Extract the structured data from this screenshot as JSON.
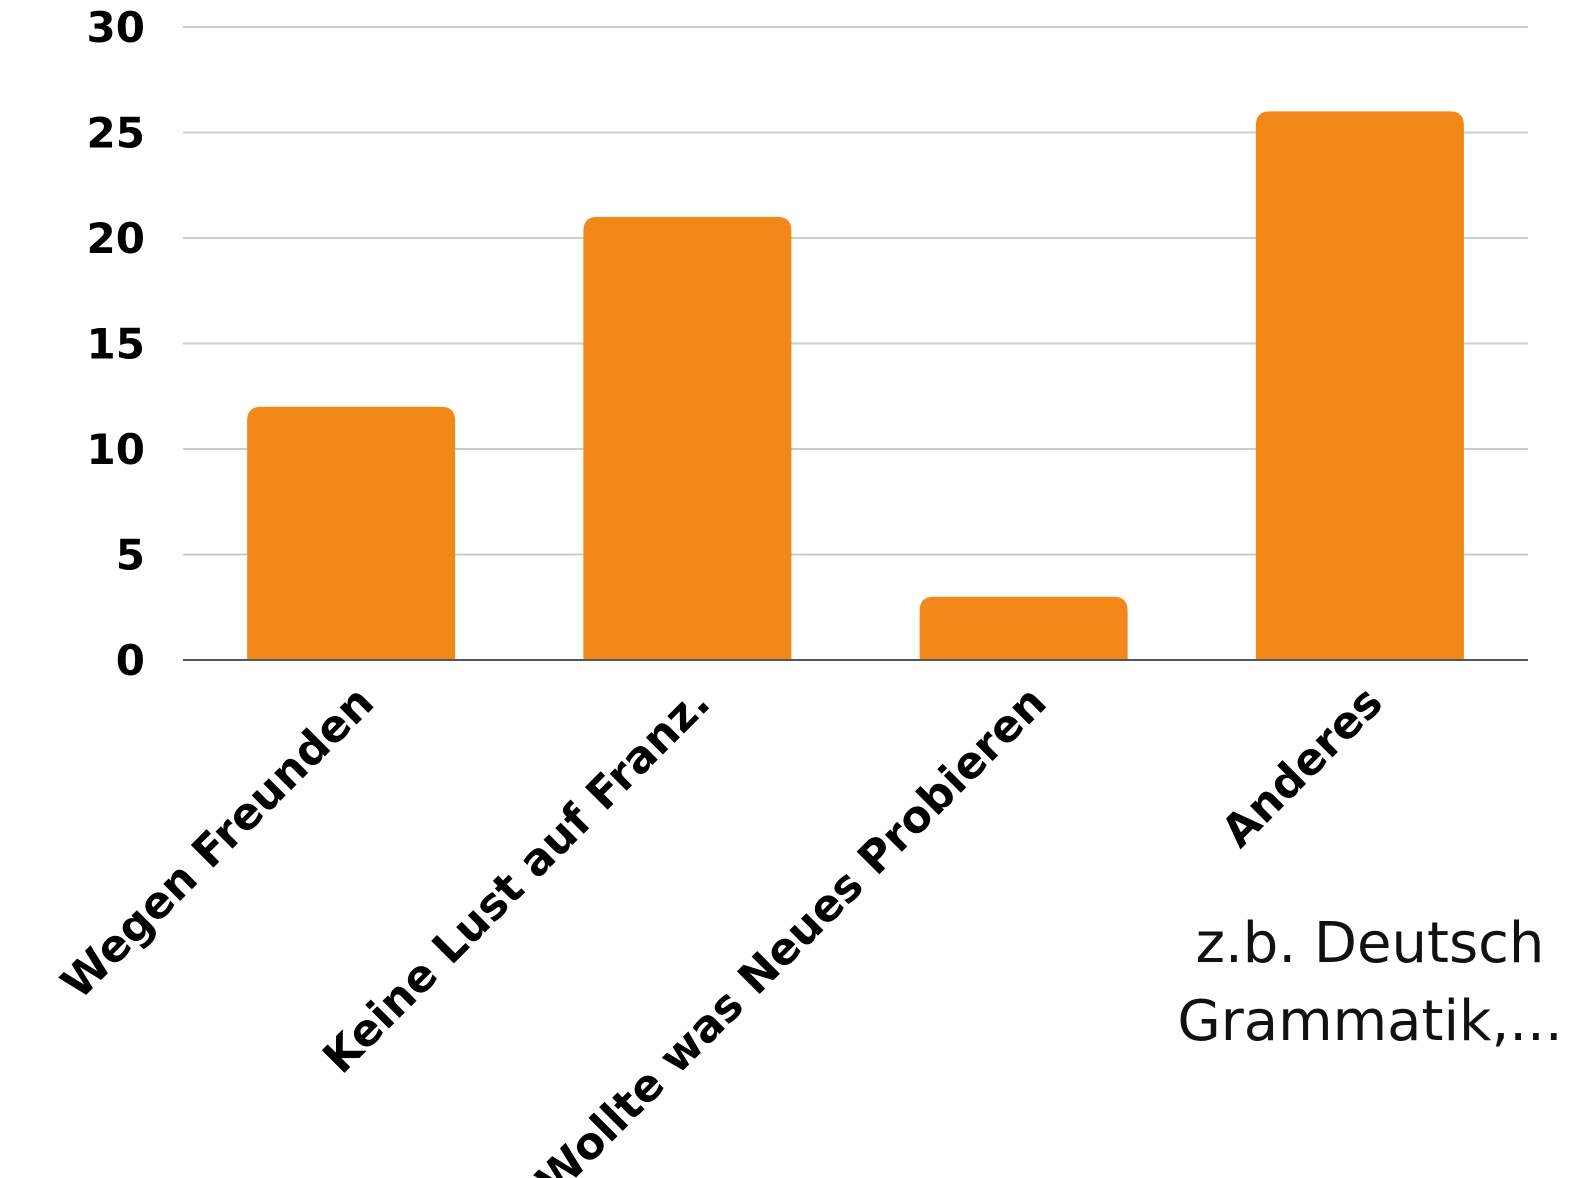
{
  "chart_data": {
    "type": "bar",
    "categories": [
      "Wegen Freunden",
      "Keine Lust auf Franz.",
      "Wollte was Neues Probieren",
      "Anderes"
    ],
    "values": [
      12,
      21,
      3,
      26
    ],
    "ylim": [
      0,
      30
    ],
    "yticks": [
      0,
      5,
      10,
      15,
      20,
      25,
      30
    ],
    "grid": true,
    "legend": "none",
    "title": "",
    "xlabel": "",
    "ylabel": "",
    "bar_color": "#F28818",
    "grid_color": "#CCCCCC",
    "axis_color": "#555555"
  },
  "note": {
    "line1": "z.b. Deutsch",
    "line2": "Grammatik,..."
  }
}
